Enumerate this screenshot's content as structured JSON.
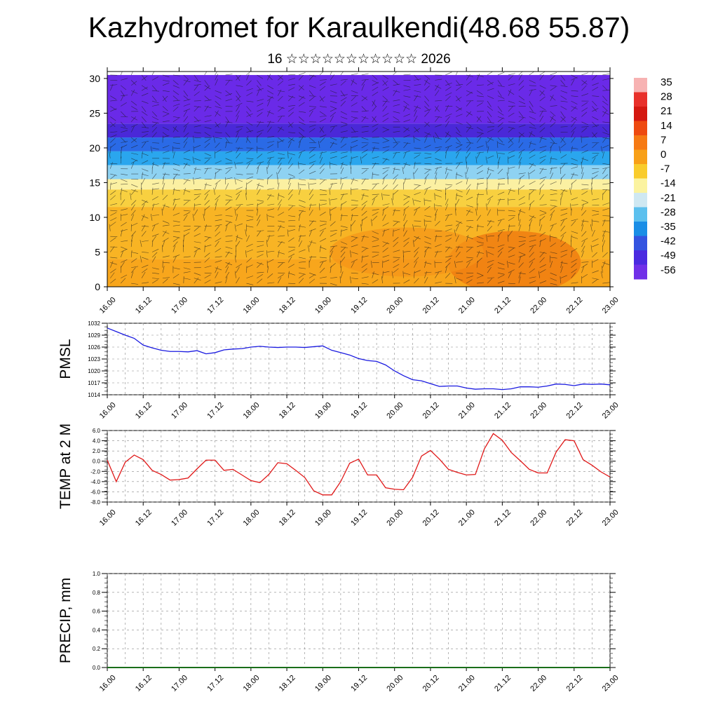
{
  "header": {
    "title": "Kazhydromet for Karaulkendi(48.68 55.87)",
    "subtitle": "16 ☆☆☆☆☆☆☆☆☆☆☆ 2026"
  },
  "time_labels": [
    "16.00",
    "16.12",
    "17.00",
    "17.12",
    "18.00",
    "18.12",
    "19.00",
    "19.12",
    "20.00",
    "20.12",
    "21.00",
    "21.12",
    "22.00",
    "22.12",
    "23.00"
  ],
  "chart_data": [
    {
      "type": "heatmap",
      "name": "temperature-wind-section",
      "x_categories": [
        "16.00",
        "16.12",
        "17.00",
        "17.12",
        "18.00",
        "18.12",
        "19.00",
        "19.12",
        "20.00",
        "20.12",
        "21.00",
        "21.12",
        "22.00",
        "22.12",
        "23.00"
      ],
      "yticks": [
        "0",
        "5",
        "10",
        "15",
        "20",
        "25",
        "30"
      ],
      "ylim": [
        0,
        31
      ],
      "colorbar": {
        "labels": [
          "35",
          "28",
          "21",
          "14",
          "7",
          "0",
          "-7",
          "-14",
          "-21",
          "-28",
          "-35",
          "-42",
          "-49",
          "-56"
        ],
        "colors": [
          "#f7b2b2",
          "#e8302a",
          "#d41810",
          "#ee4a10",
          "#f67a14",
          "#f8a018",
          "#f9cc2c",
          "#fbf3a0",
          "#cfe8f2",
          "#5cc0ee",
          "#1a8ee6",
          "#3454e0",
          "#4a2ae0",
          "#7030e8"
        ]
      },
      "bands": [
        {
          "from": 30.5,
          "to": 23.5,
          "color": "#6a2ae8"
        },
        {
          "from": 23.5,
          "to": 21.5,
          "color": "#4a28d8"
        },
        {
          "from": 21.5,
          "to": 19.5,
          "color": "#2a6ae6"
        },
        {
          "from": 19.5,
          "to": 17.5,
          "color": "#2aa6ee"
        },
        {
          "from": 17.5,
          "to": 15.5,
          "color": "#8ed2f2"
        },
        {
          "from": 15.5,
          "to": 14.0,
          "color": "#fbf0a2"
        },
        {
          "from": 14.0,
          "to": 11.5,
          "color": "#f8d040"
        },
        {
          "from": 11.5,
          "to": 4.0,
          "color": "#f8b424"
        },
        {
          "from": 4.0,
          "to": 0.0,
          "color": "#f8a61c"
        }
      ]
    },
    {
      "type": "line",
      "name": "PMSL",
      "ylabel": "PMSL",
      "yticks": [
        "1032",
        "1029",
        "1026",
        "1023",
        "1020",
        "1017",
        "1014"
      ],
      "ylim": [
        1014,
        1032
      ],
      "color": "#1a1ae0",
      "x": [
        "16.00",
        "16.03",
        "16.06",
        "16.09",
        "16.12",
        "16.15",
        "16.18",
        "16.21",
        "17.00",
        "17.03",
        "17.06",
        "17.09",
        "17.12",
        "17.15",
        "17.18",
        "17.21",
        "18.00",
        "18.03",
        "18.06",
        "18.09",
        "18.12",
        "18.15",
        "18.18",
        "18.21",
        "19.00",
        "19.03",
        "19.06",
        "19.09",
        "19.12",
        "19.15",
        "19.18",
        "19.21",
        "20.00",
        "20.03",
        "20.06",
        "20.09",
        "20.12",
        "20.15",
        "20.18",
        "20.21",
        "21.00",
        "21.03",
        "21.06",
        "21.09",
        "21.12",
        "21.15",
        "21.18",
        "21.21",
        "22.00",
        "22.03",
        "22.06",
        "22.09",
        "22.12",
        "22.15",
        "22.18",
        "22.21",
        "23.00"
      ],
      "values": [
        1030.8,
        1029.9,
        1029.0,
        1028.2,
        1026.5,
        1025.8,
        1025.2,
        1024.9,
        1024.9,
        1024.8,
        1025.1,
        1024.3,
        1024.6,
        1025.3,
        1025.5,
        1025.6,
        1026.0,
        1026.2,
        1026.0,
        1025.9,
        1026.0,
        1026.0,
        1025.9,
        1026.1,
        1026.3,
        1025.2,
        1024.6,
        1024.0,
        1023.1,
        1022.6,
        1022.4,
        1021.5,
        1020.0,
        1018.8,
        1017.8,
        1017.5,
        1016.8,
        1016.1,
        1016.2,
        1016.2,
        1015.7,
        1015.4,
        1015.5,
        1015.5,
        1015.3,
        1015.5,
        1016.0,
        1016.0,
        1015.9,
        1016.2,
        1016.7,
        1016.6,
        1016.3,
        1016.7,
        1016.6,
        1016.7,
        1016.5
      ]
    },
    {
      "type": "line",
      "name": "TEMP at 2 M",
      "ylabel": "TEMP at 2 M",
      "yticks": [
        "6.0",
        "4.0",
        "2.0",
        "0.0",
        "-2.0",
        "-4.0",
        "-6.0",
        "-8.0"
      ],
      "ylim": [
        -8,
        6
      ],
      "color": "#e01818",
      "x": [
        "16.00",
        "16.03",
        "16.06",
        "16.09",
        "16.12",
        "16.15",
        "16.18",
        "16.21",
        "17.00",
        "17.03",
        "17.06",
        "17.09",
        "17.12",
        "17.15",
        "17.18",
        "17.21",
        "18.00",
        "18.03",
        "18.06",
        "18.09",
        "18.12",
        "18.15",
        "18.18",
        "18.21",
        "19.00",
        "19.03",
        "19.06",
        "19.09",
        "19.12",
        "19.15",
        "19.18",
        "19.21",
        "20.00",
        "20.03",
        "20.06",
        "20.09",
        "20.12",
        "20.15",
        "20.18",
        "20.21",
        "21.00",
        "21.03",
        "21.06",
        "21.09",
        "21.12",
        "21.15",
        "21.18",
        "21.21",
        "22.00",
        "22.03",
        "22.06",
        "22.09",
        "22.12",
        "22.15",
        "22.18",
        "22.21",
        "23.00"
      ],
      "values": [
        0.2,
        -4.0,
        -0.2,
        1.2,
        0.3,
        -1.8,
        -2.6,
        -3.7,
        -3.6,
        -3.3,
        -1.5,
        0.2,
        0.2,
        -1.8,
        -1.6,
        -2.7,
        -3.8,
        -4.2,
        -2.6,
        -0.3,
        -0.5,
        -1.8,
        -3.2,
        -5.8,
        -6.6,
        -6.6,
        -4.0,
        -0.4,
        0.4,
        -2.7,
        -2.7,
        -5.2,
        -5.5,
        -5.6,
        -3.2,
        1.0,
        2.1,
        0.4,
        -1.6,
        -2.2,
        -2.7,
        -2.6,
        2.4,
        5.4,
        4.1,
        1.7,
        0.1,
        -1.6,
        -2.3,
        -2.3,
        1.8,
        4.2,
        4.0,
        0.3,
        -0.8,
        -2.1,
        -3.1
      ]
    },
    {
      "type": "bar",
      "name": "PRECIP, mm",
      "ylabel": "PRECIP, mm",
      "yticks": [
        "1.0",
        "0.8",
        "0.6",
        "0.4",
        "0.2",
        "0.0"
      ],
      "ylim": [
        0,
        1
      ],
      "color": "#1a6e1a",
      "x": [
        "16.00",
        "16.12",
        "17.00",
        "17.12",
        "18.00",
        "18.12",
        "19.00",
        "19.12",
        "20.00",
        "20.12",
        "21.00",
        "21.12",
        "22.00",
        "22.12",
        "23.00"
      ],
      "values": [
        0,
        0,
        0,
        0,
        0,
        0,
        0,
        0,
        0,
        0,
        0,
        0,
        0,
        0,
        0
      ]
    }
  ]
}
